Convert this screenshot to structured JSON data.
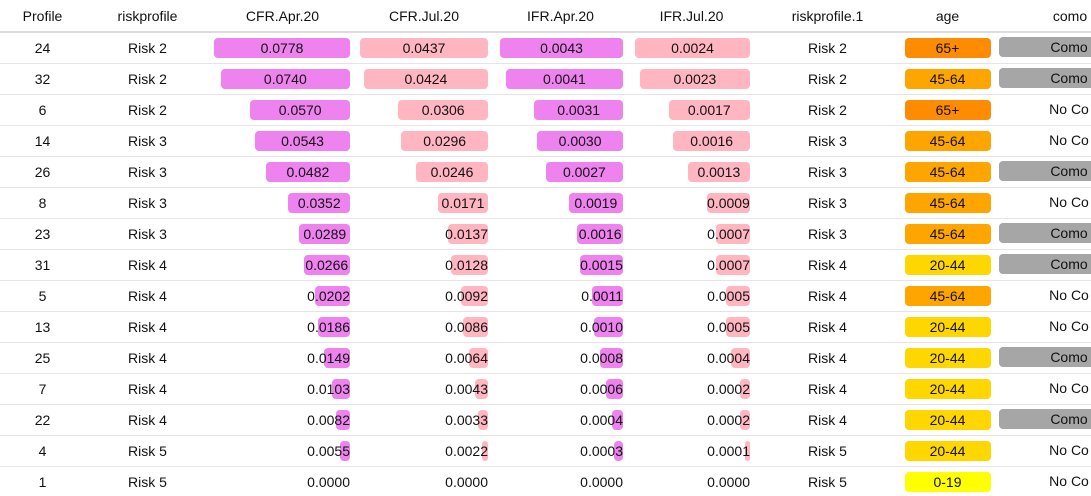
{
  "table": {
    "header": [
      "Profile",
      "riskprofile",
      "CFR.Apr.20",
      "CFR.Jul.20",
      "IFR.Apr.20",
      "IFR.Jul.20",
      "riskprofile.1",
      "age",
      "como"
    ],
    "rows": [
      [
        "24",
        "Risk 2",
        "0.0778",
        "0.0437",
        "0.0043",
        "0.0024",
        "Risk 2",
        "65+",
        "Como"
      ],
      [
        "32",
        "Risk 2",
        "0.0740",
        "0.0424",
        "0.0041",
        "0.0023",
        "Risk 2",
        "45-64",
        "Como"
      ],
      [
        "6",
        "Risk 2",
        "0.0570",
        "0.0306",
        "0.0031",
        "0.0017",
        "Risk 2",
        "65+",
        "No Co"
      ],
      [
        "14",
        "Risk 3",
        "0.0543",
        "0.0296",
        "0.0030",
        "0.0016",
        "Risk 3",
        "45-64",
        "No Co"
      ],
      [
        "26",
        "Risk 3",
        "0.0482",
        "0.0246",
        "0.0027",
        "0.0013",
        "Risk 3",
        "45-64",
        "Como"
      ],
      [
        "8",
        "Risk 3",
        "0.0352",
        "0.0171",
        "0.0019",
        "0.0009",
        "Risk 3",
        "45-64",
        "No Co"
      ],
      [
        "23",
        "Risk 3",
        "0.0289",
        "0.0137",
        "0.0016",
        "0.0007",
        "Risk 3",
        "45-64",
        "Como"
      ],
      [
        "31",
        "Risk 4",
        "0.0266",
        "0.0128",
        "0.0015",
        "0.0007",
        "Risk 4",
        "20-44",
        "Como"
      ],
      [
        "5",
        "Risk 4",
        "0.0202",
        "0.0092",
        "0.0011",
        "0.0005",
        "Risk 4",
        "45-64",
        "No Co"
      ],
      [
        "13",
        "Risk 4",
        "0.0186",
        "0.0086",
        "0.0010",
        "0.0005",
        "Risk 4",
        "20-44",
        "No Co"
      ],
      [
        "25",
        "Risk 4",
        "0.0149",
        "0.0064",
        "0.0008",
        "0.0004",
        "Risk 4",
        "20-44",
        "Como"
      ],
      [
        "7",
        "Risk 4",
        "0.0103",
        "0.0043",
        "0.0006",
        "0.0002",
        "Risk 4",
        "20-44",
        "No Co"
      ],
      [
        "22",
        "Risk 4",
        "0.0082",
        "0.0033",
        "0.0004",
        "0.0002",
        "Risk 4",
        "20-44",
        "Como"
      ],
      [
        "4",
        "Risk 5",
        "0.0055",
        "0.0022",
        "0.0003",
        "0.0001",
        "Risk 5",
        "20-44",
        "No Co"
      ],
      [
        "1",
        "Risk 5",
        "0.0000",
        "0.0000",
        "0.0000",
        "0.0000",
        "Risk 5",
        "0-19",
        "No Co"
      ]
    ],
    "bar_colors": [
      "#ee82ee",
      "#ffb6c1",
      "#ee82ee",
      "#ffb6c1"
    ],
    "age_colors": [
      "#ff8c00",
      "#ffa500",
      "#ff8c00",
      "#ffa500",
      "#ffa500",
      "#ffa500",
      "#ffa500",
      "#ffd700",
      "#ffa500",
      "#ffd700",
      "#ffd700",
      "#ffd700",
      "#ffd700",
      "#ffd700",
      "#ffff00"
    ],
    "como_colors": [
      "#a6a6a6",
      "#a6a6a6",
      null,
      null,
      "#a6a6a6",
      null,
      "#a6a6a6",
      "#a6a6a6",
      null,
      null,
      "#a6a6a6",
      null,
      "#a6a6a6",
      null,
      null
    ]
  }
}
